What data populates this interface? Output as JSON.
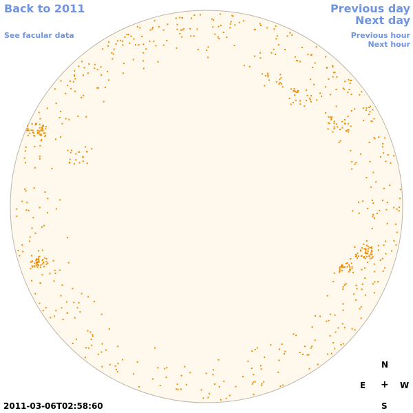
{
  "nav": {
    "back_label": "Back to 2011",
    "facular_label": "See facular data",
    "prev_day_label": "Previous day",
    "next_day_label": "Next day",
    "prev_hour_label": "Previous hour",
    "next_hour_label": "Next hour"
  },
  "compass": {
    "n": "N",
    "e": "E",
    "w": "W",
    "s": "S",
    "center": "+"
  },
  "timestamp": "2011-03-06T02:58:60",
  "colors": {
    "link": "#6f94e0",
    "disk_fill": "#fff8ec",
    "disk_stroke": "#bdb4a8",
    "facula": "#f08c00"
  }
}
